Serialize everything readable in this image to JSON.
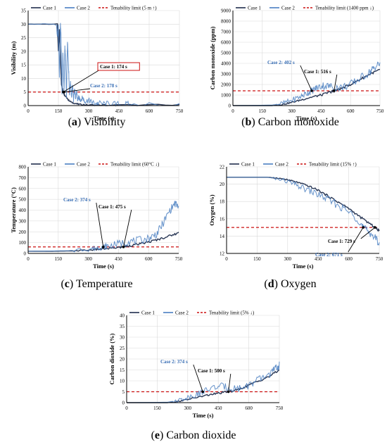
{
  "colors": {
    "case1": "#1f2d4d",
    "case2": "#4a7fc1",
    "limit": "#cc1111",
    "annotation_case2": "#3a6fb5"
  },
  "captions": [
    {
      "letter": "a",
      "text": "Visibility"
    },
    {
      "letter": "b",
      "text": "Carbon monoxide"
    },
    {
      "letter": "c",
      "text": "Temperature"
    },
    {
      "letter": "d",
      "text": "Oxygen"
    },
    {
      "letter": "e",
      "text": "Carbon dioxide"
    }
  ],
  "chart_data": [
    {
      "type": "line",
      "xlabel": "Time (s)",
      "ylabel": "Visibility (m)",
      "xlim": [
        0,
        750
      ],
      "ylim": [
        0,
        35
      ],
      "xticks": [
        0,
        150,
        300,
        450,
        600,
        750
      ],
      "yticks": [
        0,
        5,
        10,
        15,
        20,
        25,
        30,
        35
      ],
      "grid": true,
      "legend": [
        "Case 1",
        "Case 2",
        "Tenability limit (5 m ↑)"
      ],
      "limit": 5,
      "series": [
        {
          "name": "Case 1",
          "x": [
            0,
            145,
            150,
            155,
            160,
            165,
            170,
            174,
            180,
            190,
            200,
            220,
            250,
            300,
            400,
            750
          ],
          "y": [
            30,
            30,
            20,
            28,
            18,
            8,
            6,
            5,
            4,
            3,
            2,
            1,
            0.5,
            0.2,
            0.1,
            0.1
          ]
        },
        {
          "name": "Case 2",
          "x": [
            0,
            140,
            145,
            150,
            155,
            160,
            163,
            168,
            172,
            178,
            182,
            186,
            190,
            195,
            200,
            205,
            210,
            215,
            220,
            225,
            230,
            235,
            240,
            245,
            250,
            260,
            270,
            280,
            300,
            320,
            350,
            400,
            450,
            500,
            750
          ],
          "y": [
            30,
            30,
            25,
            30,
            10,
            30,
            26,
            4,
            20,
            5,
            22,
            16,
            3,
            24,
            15,
            4,
            9,
            3,
            8,
            2,
            6,
            3,
            5,
            2,
            3,
            2,
            3,
            1.5,
            2,
            1,
            0.8,
            0.4,
            0.2,
            0.1,
            0.1
          ]
        }
      ],
      "annotations": [
        {
          "text": "Case 1: 174 s",
          "x": 174,
          "y": 5,
          "series": "Case 1"
        },
        {
          "text": "Case 2: 178 s",
          "x": 178,
          "y": 5,
          "series": "Case 2"
        }
      ]
    },
    {
      "type": "line",
      "xlabel": "Time (s)",
      "ylabel": "Carbon monoxide (ppm)",
      "xlim": [
        0,
        750
      ],
      "ylim": [
        0,
        9000
      ],
      "xticks": [
        0,
        150,
        300,
        450,
        600,
        750
      ],
      "yticks": [
        0,
        1000,
        2000,
        3000,
        4000,
        5000,
        6000,
        7000,
        8000,
        9000
      ],
      "grid": true,
      "legend": [
        "Case 1",
        "Case 2",
        "Tenability limit (1400 ppm ↓)"
      ],
      "limit": 1400,
      "series": [
        {
          "name": "Case 1",
          "x": [
            0,
            200,
            250,
            300,
            350,
            400,
            450,
            500,
            516,
            550,
            600,
            650,
            700,
            750
          ],
          "y": [
            0,
            0,
            100,
            300,
            550,
            800,
            1000,
            1300,
            1400,
            1600,
            2000,
            2500,
            3000,
            3400
          ]
        },
        {
          "name": "Case 2",
          "x": [
            0,
            200,
            250,
            300,
            350,
            380,
            402,
            430,
            460,
            500,
            550,
            600,
            650,
            700,
            720,
            750
          ],
          "y": [
            0,
            50,
            200,
            500,
            900,
            1200,
            1400,
            1700,
            1900,
            1800,
            1700,
            2000,
            2600,
            3200,
            3600,
            4000
          ]
        }
      ],
      "annotations": [
        {
          "text": "Case 2: 402 s",
          "x": 402,
          "y": 1400,
          "series": "Case 2"
        },
        {
          "text": "Case 1: 516 s",
          "x": 516,
          "y": 1400,
          "series": "Case 1"
        }
      ]
    },
    {
      "type": "line",
      "xlabel": "Time (s)",
      "ylabel": "Temperature (°C)",
      "xlim": [
        0,
        750
      ],
      "ylim": [
        0,
        800
      ],
      "xticks": [
        0,
        150,
        300,
        450,
        600,
        750
      ],
      "yticks": [
        0,
        100,
        200,
        300,
        400,
        500,
        600,
        700,
        800
      ],
      "grid": true,
      "legend": [
        "Case 1",
        "Case 2",
        "Tenability limit (60°C ↓)"
      ],
      "limit": 60,
      "series": [
        {
          "name": "Case 1",
          "x": [
            0,
            100,
            200,
            300,
            350,
            400,
            450,
            475,
            500,
            550,
            600,
            650,
            700,
            750
          ],
          "y": [
            20,
            20,
            22,
            30,
            38,
            45,
            55,
            60,
            70,
            85,
            105,
            130,
            160,
            190
          ]
        },
        {
          "name": "Case 2",
          "x": [
            0,
            100,
            200,
            300,
            340,
            374,
            400,
            450,
            500,
            550,
            600,
            640,
            670,
            700,
            730,
            750
          ],
          "y": [
            20,
            22,
            25,
            40,
            52,
            60,
            70,
            90,
            110,
            120,
            140,
            180,
            270,
            380,
            460,
            430
          ]
        }
      ],
      "annotations": [
        {
          "text": "Case 2: 374 s",
          "x": 374,
          "y": 60,
          "series": "Case 2"
        },
        {
          "text": "Case 1: 475 s",
          "x": 475,
          "y": 60,
          "series": "Case 1"
        }
      ]
    },
    {
      "type": "line",
      "xlabel": "Time (s)",
      "ylabel": "Oxygen (%)",
      "xlim": [
        0,
        750
      ],
      "ylim": [
        12,
        22
      ],
      "xticks": [
        0,
        150,
        300,
        450,
        600,
        750
      ],
      "yticks": [
        12,
        14,
        16,
        18,
        20,
        22
      ],
      "grid": true,
      "legend": [
        "Case 1",
        "Case 2",
        "Tenability limit (15% ↑)"
      ],
      "limit": 15,
      "series": [
        {
          "name": "Case 1",
          "x": [
            0,
            200,
            250,
            300,
            350,
            400,
            450,
            500,
            550,
            600,
            650,
            700,
            729,
            750
          ],
          "y": [
            20.8,
            20.8,
            20.7,
            20.5,
            20.2,
            19.8,
            19.3,
            18.6,
            17.9,
            17.2,
            16.3,
            15.5,
            15.0,
            14.6
          ]
        },
        {
          "name": "Case 2",
          "x": [
            0,
            200,
            250,
            300,
            350,
            400,
            450,
            500,
            550,
            600,
            650,
            671,
            700,
            730,
            750
          ],
          "y": [
            20.8,
            20.8,
            20.6,
            20.3,
            19.8,
            19.3,
            18.8,
            18.2,
            17.5,
            16.8,
            15.8,
            15.0,
            14.5,
            13.8,
            13.2
          ]
        }
      ],
      "annotations": [
        {
          "text": "Case 1: 729 s",
          "x": 729,
          "y": 15,
          "series": "Case 1"
        },
        {
          "text": "Case 2: 671 s",
          "x": 671,
          "y": 15,
          "series": "Case 2"
        }
      ]
    },
    {
      "type": "line",
      "xlabel": "Time (s)",
      "ylabel": "Carbon dioxide (%)",
      "xlim": [
        0,
        750
      ],
      "ylim": [
        0,
        40
      ],
      "xticks": [
        0,
        150,
        300,
        450,
        600,
        750
      ],
      "yticks": [
        0,
        5,
        10,
        15,
        20,
        25,
        30,
        35,
        40
      ],
      "grid": true,
      "legend": [
        "Case 1",
        "Case 2",
        "Tenability limit (5% ↓)"
      ],
      "limit": 5,
      "series": [
        {
          "name": "Case 1",
          "x": [
            0,
            200,
            250,
            300,
            350,
            400,
            450,
            500,
            550,
            600,
            650,
            700,
            750
          ],
          "y": [
            0,
            0,
            0.5,
            1.5,
            2.5,
            3.5,
            4.3,
            5,
            6,
            8,
            10,
            12,
            15
          ]
        },
        {
          "name": "Case 2",
          "x": [
            0,
            200,
            250,
            300,
            350,
            374,
            400,
            450,
            500,
            550,
            600,
            650,
            700,
            730,
            750
          ],
          "y": [
            0,
            0.2,
            1,
            2.5,
            4,
            5,
            6,
            7.5,
            7,
            6.5,
            8,
            10.5,
            13,
            15.5,
            17
          ]
        }
      ],
      "annotations": [
        {
          "text": "Case 2: 374 s",
          "x": 374,
          "y": 5,
          "series": "Case 2"
        },
        {
          "text": "Case 1: 500 s",
          "x": 500,
          "y": 5,
          "series": "Case 1"
        }
      ]
    }
  ]
}
